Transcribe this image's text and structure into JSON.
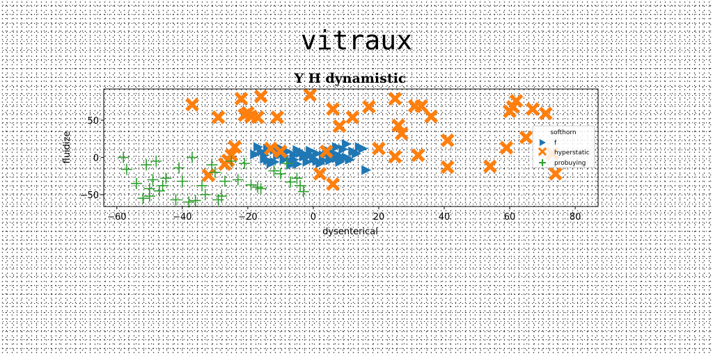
{
  "suptitle": "vitraux",
  "chart_data": {
    "type": "scatter",
    "title": "Y H dynamistic",
    "xlabel": "dysenterical",
    "ylabel": "fluidize",
    "xlim": [
      -64,
      87
    ],
    "ylim": [
      -66,
      92
    ],
    "xticks": [
      -60,
      -40,
      -20,
      0,
      20,
      40,
      60,
      80
    ],
    "xtick_labels": [
      "−60",
      "−40",
      "−20",
      "0",
      "20",
      "40",
      "60",
      "80"
    ],
    "yticks": [
      -50,
      0,
      50
    ],
    "ytick_labels": [
      "−50",
      "0",
      "50"
    ],
    "grid": false,
    "legend": {
      "title": "softhorn",
      "placement": "right"
    },
    "series": [
      {
        "name": "f",
        "marker": "triangle-right",
        "color": "#1f77b4",
        "points": [
          [
            -17,
            14
          ],
          [
            -16,
            8
          ],
          [
            -15,
            3
          ],
          [
            -14,
            -4
          ],
          [
            -13,
            -8
          ],
          [
            -12,
            -6
          ],
          [
            -11,
            2
          ],
          [
            -10,
            12
          ],
          [
            -9,
            -3
          ],
          [
            -8,
            8
          ],
          [
            -7,
            -5
          ],
          [
            -6,
            3
          ],
          [
            -5,
            -9
          ],
          [
            -4,
            6
          ],
          [
            -3,
            1
          ],
          [
            -2,
            -6
          ],
          [
            -1,
            9
          ],
          [
            0,
            -2
          ],
          [
            1,
            5
          ],
          [
            2,
            -8
          ],
          [
            3,
            3
          ],
          [
            4,
            10
          ],
          [
            5,
            -4
          ],
          [
            6,
            6
          ],
          [
            7,
            -1
          ],
          [
            8,
            2
          ],
          [
            9,
            11
          ],
          [
            10,
            0
          ],
          [
            11,
            -3
          ],
          [
            12,
            8
          ],
          [
            13,
            5
          ],
          [
            14,
            14
          ],
          [
            -15,
            -2
          ],
          [
            -12,
            10
          ],
          [
            -9,
            2
          ],
          [
            -6,
            -3
          ],
          [
            -3,
            5
          ],
          [
            1,
            -5
          ],
          [
            4,
            7
          ],
          [
            8,
            -6
          ],
          [
            -18,
            4
          ],
          [
            -14,
            12
          ],
          [
            -5,
            10
          ],
          [
            3,
            -4
          ],
          [
            7,
            14
          ],
          [
            15,
            12
          ],
          [
            16,
            -17
          ],
          [
            10,
            18
          ],
          [
            -7,
            -10
          ],
          [
            -1,
            3
          ],
          [
            5,
            1
          ],
          [
            9,
            -2
          ]
        ]
      },
      {
        "name": "hyperstatic",
        "marker": "x-filled",
        "color": "#ff7f0e",
        "points": [
          [
            -37,
            71
          ],
          [
            -29,
            54
          ],
          [
            -22,
            79
          ],
          [
            -21,
            57
          ],
          [
            -20,
            60
          ],
          [
            -19,
            55
          ],
          [
            -17,
            54
          ],
          [
            -16,
            82
          ],
          [
            -11,
            54
          ],
          [
            -1,
            84
          ],
          [
            6,
            65
          ],
          [
            8,
            42
          ],
          [
            12,
            54
          ],
          [
            17,
            68
          ],
          [
            25,
            79
          ],
          [
            26,
            43
          ],
          [
            27,
            32
          ],
          [
            31,
            69
          ],
          [
            33,
            69
          ],
          [
            36,
            55
          ],
          [
            41,
            23
          ],
          [
            20,
            12
          ],
          [
            25,
            1
          ],
          [
            32,
            3
          ],
          [
            41,
            -13
          ],
          [
            54,
            -12
          ],
          [
            59,
            13
          ],
          [
            60,
            62
          ],
          [
            61,
            68
          ],
          [
            62,
            76
          ],
          [
            65,
            27
          ],
          [
            67,
            65
          ],
          [
            71,
            59
          ],
          [
            73,
            5
          ],
          [
            74,
            -22
          ],
          [
            -24,
            14
          ],
          [
            -25,
            3
          ],
          [
            -26,
            -4
          ],
          [
            -27,
            -9
          ],
          [
            -32,
            -24
          ],
          [
            -13,
            12
          ],
          [
            -10,
            8
          ],
          [
            4,
            8
          ],
          [
            6,
            -36
          ],
          [
            2,
            -22
          ]
        ]
      },
      {
        "name": "probuying",
        "marker": "plus",
        "color": "#2ca02c",
        "points": [
          [
            -58,
            0
          ],
          [
            -57,
            -16
          ],
          [
            -54,
            -35
          ],
          [
            -52,
            -55
          ],
          [
            -51,
            -10
          ],
          [
            -50,
            -42
          ],
          [
            -49,
            -30
          ],
          [
            -48,
            -5
          ],
          [
            -47,
            -45
          ],
          [
            -46,
            -38
          ],
          [
            -42,
            -57
          ],
          [
            -41,
            -14
          ],
          [
            -40,
            -32
          ],
          [
            -38,
            -60
          ],
          [
            -37,
            0
          ],
          [
            -36,
            -58
          ],
          [
            -34,
            -38
          ],
          [
            -33,
            -50
          ],
          [
            -31,
            -10
          ],
          [
            -30,
            -20
          ],
          [
            -29,
            -57
          ],
          [
            -28,
            -52
          ],
          [
            -25,
            -5
          ],
          [
            -23,
            -30
          ],
          [
            -21,
            -8
          ],
          [
            -19,
            -37
          ],
          [
            -17,
            -40
          ],
          [
            -16,
            -42
          ],
          [
            -12,
            -18
          ],
          [
            -10,
            -22
          ],
          [
            -8,
            -8
          ],
          [
            -7,
            -33
          ],
          [
            -5,
            -28
          ],
          [
            -4,
            -38
          ],
          [
            -3,
            -46
          ],
          [
            -50,
            -52
          ],
          [
            -45,
            -28
          ],
          [
            -27,
            -32
          ]
        ]
      }
    ]
  }
}
